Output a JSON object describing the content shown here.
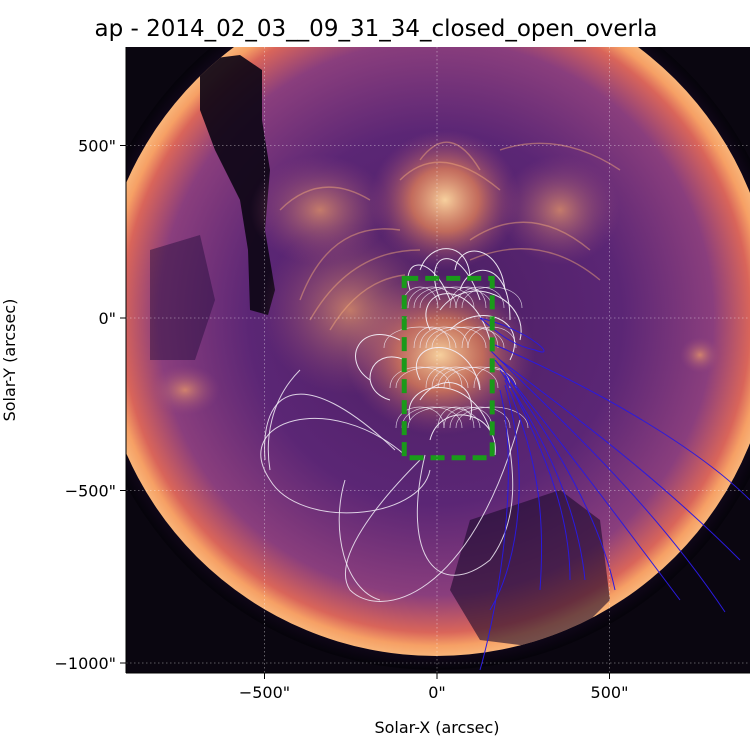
{
  "chart_data": {
    "type": "image-map",
    "title": "ap - 2014_02_03__09_31_34_closed_open_overla",
    "xlabel": "Solar-X (arcsec)",
    "ylabel": "Solar-Y (arcsec)",
    "xlim": [
      -900,
      900
    ],
    "ylim": [
      -1020,
      790
    ],
    "x_ticks": [
      {
        "value": -500,
        "label": "−500\""
      },
      {
        "value": 0,
        "label": "0\""
      },
      {
        "value": 500,
        "label": "500\""
      }
    ],
    "y_ticks": [
      {
        "value": 500,
        "label": "500\""
      },
      {
        "value": 0,
        "label": "0\""
      },
      {
        "value": -500,
        "label": "−500\""
      },
      {
        "value": -1000,
        "label": "−1000\""
      }
    ],
    "grid": true,
    "colormap": "magma",
    "solar_radius_arcsec": 975,
    "region_box": {
      "x": [
        -95,
        160
      ],
      "y": [
        -405,
        115
      ],
      "color": "#1a9a1a",
      "style": "dashed"
    },
    "closed_field_color": "#f3eef8",
    "open_field_color": "#2a1adf",
    "colors": {
      "sun_dark": "#1b0a2c",
      "sun_mid": "#5b2675",
      "sun_bright": "#e8774f",
      "limb": "#f6a065"
    }
  }
}
